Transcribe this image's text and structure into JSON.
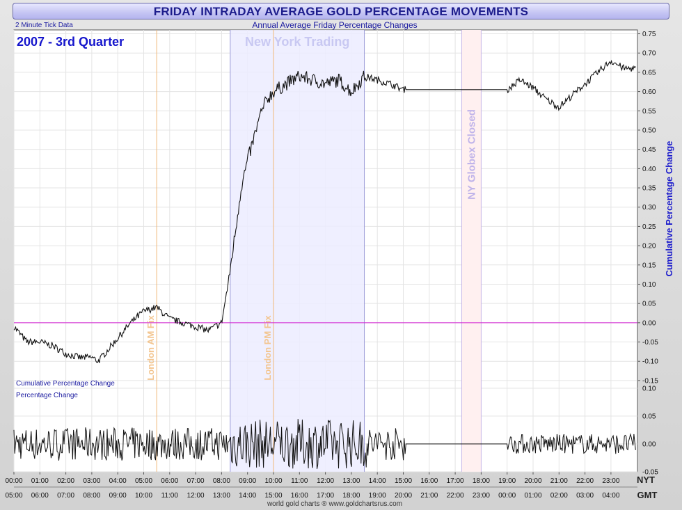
{
  "header": {
    "title": "FRIDAY INTRADAY AVERAGE GOLD PERCENTAGE MOVEMENTS"
  },
  "chart_data": {
    "type": "line",
    "subtitle": "Annual Average Friday Percentage Changes",
    "period_label": "2007 - 3rd Quarter",
    "data_note": "2 Minute Tick Data",
    "credit": "world gold charts ® www.goldchartsrus.com",
    "x_axis": {
      "nyt_ticks": [
        "00:00",
        "01:00",
        "02:00",
        "03:00",
        "04:00",
        "05:00",
        "06:00",
        "07:00",
        "08:00",
        "09:00",
        "10:00",
        "11:00",
        "12:00",
        "13:00",
        "14:00",
        "15:00",
        "16:00",
        "17:00",
        "18:00",
        "19:00",
        "20:00",
        "21:00",
        "22:00",
        "23:00"
      ],
      "gmt_ticks": [
        "05:00",
        "06:00",
        "07:00",
        "08:00",
        "09:00",
        "10:00",
        "11:00",
        "12:00",
        "13:00",
        "14:00",
        "15:00",
        "16:00",
        "17:00",
        "18:00",
        "19:00",
        "20:00",
        "21:00",
        "22:00",
        "23:00",
        "00:00",
        "01:00",
        "02:00",
        "03:00",
        "04:00"
      ],
      "nyt_label": "NYT",
      "gmt_label": "GMT"
    },
    "annotations": {
      "new_york_trading": "New York Trading",
      "london_am_fix": "London AM Fix",
      "london_pm_fix": "London PM Fix",
      "ny_globex_closed": "NY Globex Closed"
    },
    "annotation_times_nyt": {
      "new_york_trading": [
        "08:20",
        "13:30"
      ],
      "london_am_fix": "05:30",
      "london_pm_fix": "10:00",
      "ny_globex_closed": [
        "17:15",
        "18:00"
      ]
    },
    "upper_panel": {
      "name": "Cumulative Percentage Change",
      "ylabel": "Cumulative Percentage Change",
      "ylim": [
        -0.17,
        0.76
      ],
      "yticks": [
        "0.75",
        "0.70",
        "0.65",
        "0.60",
        "0.55",
        "0.50",
        "0.45",
        "0.40",
        "0.35",
        "0.30",
        "0.25",
        "0.20",
        "0.15",
        "0.10",
        "0.05",
        "0.00",
        "-0.05",
        "-0.10",
        "-0.15"
      ],
      "reference_line": 0.0,
      "series": [
        {
          "x": [
            0.0,
            0.5,
            1.0,
            1.5,
            2.0,
            2.5,
            3.0,
            3.25,
            3.5,
            4.0,
            4.5,
            5.0,
            5.5,
            6.0,
            6.5,
            7.0,
            7.5,
            8.0,
            8.25,
            8.5,
            8.75,
            9.0,
            9.25,
            9.5,
            9.75,
            10.0,
            10.5,
            11.0,
            11.5,
            12.0,
            12.5,
            13.0,
            13.5,
            14.0,
            14.5,
            15.0,
            16.0,
            17.0,
            18.0,
            19.0,
            19.5,
            20.0,
            20.5,
            21.0,
            21.5,
            22.0,
            22.5,
            23.0,
            23.5,
            23.9
          ],
          "y": [
            -0.01,
            -0.05,
            -0.05,
            -0.06,
            -0.08,
            -0.09,
            -0.09,
            -0.1,
            -0.08,
            -0.04,
            0.0,
            0.03,
            0.04,
            0.01,
            0.0,
            -0.01,
            -0.02,
            0.0,
            0.1,
            0.22,
            0.35,
            0.42,
            0.48,
            0.54,
            0.58,
            0.6,
            0.62,
            0.64,
            0.63,
            0.62,
            0.63,
            0.6,
            0.64,
            0.63,
            0.62,
            0.605,
            0.605,
            0.605,
            0.605,
            0.605,
            0.63,
            0.61,
            0.58,
            0.56,
            0.59,
            0.62,
            0.65,
            0.68,
            0.66,
            0.66
          ]
        }
      ]
    },
    "lower_panel": {
      "name": "Percentage Change",
      "ylim": [
        -0.05,
        0.1
      ],
      "yticks": [
        "0.10",
        "0.05",
        "0.00",
        "-0.05"
      ]
    }
  }
}
